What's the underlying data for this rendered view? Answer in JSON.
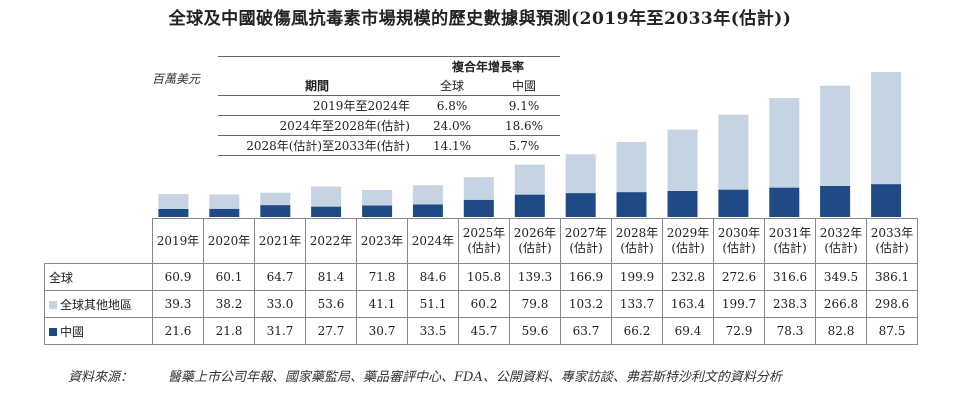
{
  "title": "全球及中國破傷風抗毒素市場規模的歷史數據與預測(2019年至2033年(估計))",
  "unit": "百萬美元",
  "cagr_table": {
    "header": "複合年增長率",
    "period_label": "期間",
    "col_global": "全球",
    "col_china": "中國",
    "rows": [
      {
        "period": "2019年至2024年",
        "global": "6.8%",
        "china": "9.1%"
      },
      {
        "period": "2024年至2028年(估計)",
        "global": "24.0%",
        "china": "18.6%"
      },
      {
        "period": "2028年(估計)至2033年(估計)",
        "global": "14.1%",
        "china": "5.7%"
      }
    ]
  },
  "chart_data": {
    "type": "bar",
    "stacked": true,
    "categories": [
      "2019年",
      "2020年",
      "2021年",
      "2022年",
      "2023年",
      "2024年",
      "2025年(估計)",
      "2026年(估計)",
      "2027年(估計)",
      "2028年(估計)",
      "2029年(估計)",
      "2030年(估計)",
      "2031年(估計)",
      "2032年(估計)",
      "2033年(估計)"
    ],
    "category_lines": [
      [
        "2019年"
      ],
      [
        "2020年"
      ],
      [
        "2021年"
      ],
      [
        "2022年"
      ],
      [
        "2023年"
      ],
      [
        "2024年"
      ],
      [
        "2025年",
        "(估計)"
      ],
      [
        "2026年",
        "(估計)"
      ],
      [
        "2027年",
        "(估計)"
      ],
      [
        "2028年",
        "(估計)"
      ],
      [
        "2029年",
        "(估計)"
      ],
      [
        "2030年",
        "(估計)"
      ],
      [
        "2031年",
        "(估計)"
      ],
      [
        "2032年",
        "(估計)"
      ],
      [
        "2033年",
        "(估計)"
      ]
    ],
    "totals_label": "全球",
    "totals": [
      60.9,
      60.1,
      64.7,
      81.4,
      71.8,
      84.6,
      105.8,
      139.3,
      166.9,
      199.9,
      232.8,
      272.6,
      316.6,
      349.5,
      386.1
    ],
    "series": [
      {
        "name": "全球其他地區",
        "color": "#c5d3e3",
        "values": [
          39.3,
          38.2,
          33.0,
          53.6,
          41.1,
          51.1,
          60.2,
          79.8,
          103.2,
          133.7,
          163.4,
          199.7,
          238.3,
          266.8,
          298.6
        ]
      },
      {
        "name": "中國",
        "color": "#1f4a85",
        "values": [
          21.6,
          21.8,
          31.7,
          27.7,
          30.7,
          33.5,
          45.7,
          59.6,
          63.7,
          66.2,
          69.4,
          72.9,
          78.3,
          82.8,
          87.5
        ]
      }
    ],
    "ylim": [
      0,
      386.1
    ]
  },
  "source_label": "資料來源：",
  "source_text": "醫藥上市公司年報、國家藥監局、藥品審評中心、FDA、公開資料、專家訪談、弗若斯特沙利文的資料分析"
}
